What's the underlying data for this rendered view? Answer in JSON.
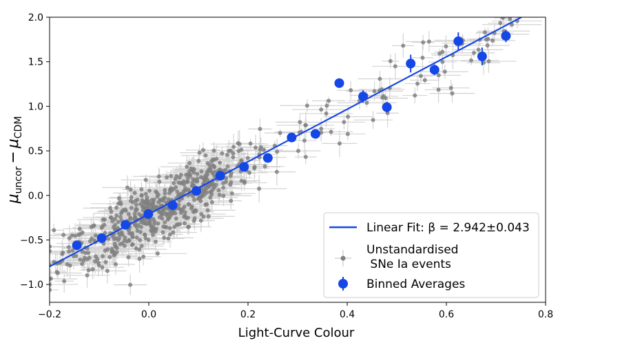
{
  "chart_data": {
    "type": "scatter",
    "title": "",
    "xlabel": "Light-Curve Colour",
    "ylabel_main": "μ",
    "ylabel_sub1": "uncor",
    "ylabel_minus": "−",
    "ylabel_sub2": "CDM",
    "xlim": [
      -0.2,
      0.8
    ],
    "ylim": [
      -1.2,
      2.0
    ],
    "xticks": [
      -0.2,
      0.0,
      0.2,
      0.4,
      0.6,
      0.8
    ],
    "xtick_labels": [
      "−0.2",
      "0.0",
      "0.2",
      "0.4",
      "0.6",
      "0.8"
    ],
    "yticks": [
      -1.0,
      -0.5,
      0.0,
      0.5,
      1.0,
      1.5,
      2.0
    ],
    "ytick_labels": [
      "−1.0",
      "−0.5",
      "0.0",
      "0.5",
      "1.0",
      "1.5",
      "2.0"
    ],
    "grid": false,
    "legend_position": "lower-right",
    "colors": {
      "fit_line": "#1447e6",
      "binned": "#1447e6",
      "events": "#808080",
      "event_errors": "#d3d3d3"
    },
    "legend": [
      {
        "key": "fit",
        "label": "Linear Fit: β = 2.942±0.043"
      },
      {
        "key": "events",
        "label_line1": "Unstandardised",
        "label_line2": " SNe Ia events"
      },
      {
        "key": "binned",
        "label": "Binned Averages"
      }
    ],
    "fit": {
      "slope": 2.942,
      "slope_err": 0.043,
      "intercept": -0.21
    },
    "binned_averages": [
      {
        "x": -0.145,
        "y": -0.56,
        "yerr": 0.04
      },
      {
        "x": -0.095,
        "y": -0.48,
        "yerr": 0.03
      },
      {
        "x": -0.047,
        "y": -0.33,
        "yerr": 0.03
      },
      {
        "x": -0.001,
        "y": -0.21,
        "yerr": 0.03
      },
      {
        "x": 0.048,
        "y": -0.11,
        "yerr": 0.03
      },
      {
        "x": 0.096,
        "y": 0.05,
        "yerr": 0.03
      },
      {
        "x": 0.144,
        "y": 0.22,
        "yerr": 0.03
      },
      {
        "x": 0.192,
        "y": 0.32,
        "yerr": 0.03
      },
      {
        "x": 0.24,
        "y": 0.42,
        "yerr": 0.04
      },
      {
        "x": 0.288,
        "y": 0.65,
        "yerr": 0.04
      },
      {
        "x": 0.336,
        "y": 0.69,
        "yerr": 0.04
      },
      {
        "x": 0.384,
        "y": 1.26,
        "yerr": 0.05
      },
      {
        "x": 0.432,
        "y": 1.11,
        "yerr": 0.07
      },
      {
        "x": 0.48,
        "y": 0.99,
        "yerr": 0.06
      },
      {
        "x": 0.528,
        "y": 1.48,
        "yerr": 0.1
      },
      {
        "x": 0.576,
        "y": 1.41,
        "yerr": 0.06
      },
      {
        "x": 0.624,
        "y": 1.73,
        "yerr": 0.1
      },
      {
        "x": 0.672,
        "y": 1.56,
        "yerr": 0.1
      },
      {
        "x": 0.72,
        "y": 1.79,
        "yerr": 0.07
      }
    ],
    "events_approximate": {
      "count": 700,
      "x_range": [
        -0.2,
        0.75
      ],
      "scatter_sd": 0.17
    }
  }
}
